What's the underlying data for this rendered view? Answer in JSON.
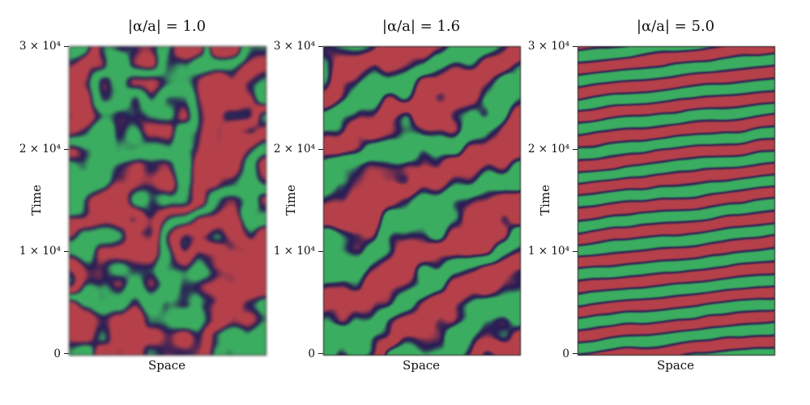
{
  "chart_data": {
    "type": "heatmap",
    "layout": "1 row x 3 panels of space-time plots",
    "xlabel": "Space",
    "ylabel": "Time",
    "ylim": [
      0,
      30000
    ],
    "yticks": [
      0,
      10000,
      20000,
      30000
    ],
    "palette": {
      "green": "#3BAD60",
      "red": "#B5404A",
      "dark": "#2A1E55"
    },
    "panels": [
      {
        "title": "|α/a| = 1.0",
        "xlabel": "Space",
        "ylabel": "Time",
        "ytick_labels": [
          "3 × 10⁴",
          "2 × 10⁴",
          "1 × 10⁴",
          "0"
        ],
        "pattern": "broad irregular diagonal travelling waves with defects; large blurry green, red and dark indigo domains",
        "render": {
          "cycles_t": 2.0,
          "cycles_x": -0.85,
          "noise": 1.0,
          "sharp": 1.5,
          "blur": 1.5,
          "seed": 3
        }
      },
      {
        "title": "|α/a| = 1.6",
        "xlabel": "Space",
        "ylabel": "Time",
        "ytick_labels": [
          "3 × 10⁴",
          "2 × 10⁴",
          "1 × 10⁴",
          "0"
        ],
        "pattern": "regular diagonal stripes of green and dark indigo rising to the right, with red teardrop-shaped defects along the stripes",
        "render": {
          "cycles_t": 4.3,
          "cycles_x": -1.35,
          "noise": 0.5,
          "sharp": 1.7,
          "blur": 0.8,
          "seed": 8
        }
      },
      {
        "title": "|α/a| = 5.0",
        "xlabel": "Space",
        "ylabel": "Time",
        "ytick_labels": [
          "3 × 10⁴",
          "2 × 10⁴",
          "1 × 10⁴",
          "0"
        ],
        "pattern": "fine nearly horizontal periodic stripes alternating green and red separated by dark indigo, about 13 periods, slightly tilted",
        "render": {
          "cycles_t": 12.6,
          "cycles_x": -0.85,
          "noise": 0.12,
          "sharp": 2.0,
          "blur": 0.5,
          "seed": 5
        }
      }
    ]
  }
}
